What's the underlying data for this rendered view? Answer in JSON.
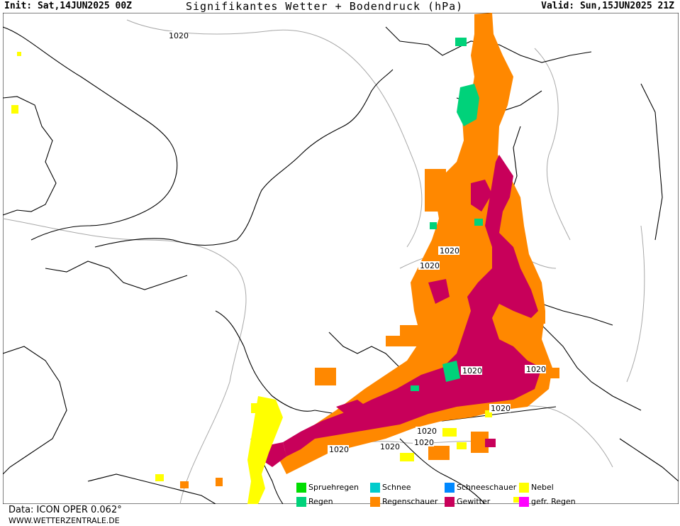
{
  "header": {
    "init": "Init: Sat,14JUN2025 00Z",
    "title": "Signifikantes Wetter + Bodendruck (hPa)",
    "valid": "Valid: Sun,15JUN2025 21Z"
  },
  "isobar_labels": [
    "1020",
    "1020",
    "1020",
    "1020",
    "1020",
    "1020",
    "1020",
    "1020",
    "1020",
    "1020",
    "1020"
  ],
  "legend": [
    {
      "label": "Spruehregen",
      "color": "#00dd00"
    },
    {
      "label": "Schnee",
      "color": "#00cccc"
    },
    {
      "label": "Schneeschauer",
      "color": "#0088ff"
    },
    {
      "label": "Nebel",
      "color": "#ffff00"
    },
    {
      "label": "Regen",
      "color": "#00d27a"
    },
    {
      "label": "Regenschauer",
      "color": "#ff8800"
    },
    {
      "label": "Gewitter",
      "color": "#c8005a"
    },
    {
      "label": "gefr. Regen",
      "color": "#ff00ff"
    }
  ],
  "footer": {
    "data": "Data: ICON OPER 0.062°",
    "site": "WWW.WETTERZENTRALE.DE"
  }
}
